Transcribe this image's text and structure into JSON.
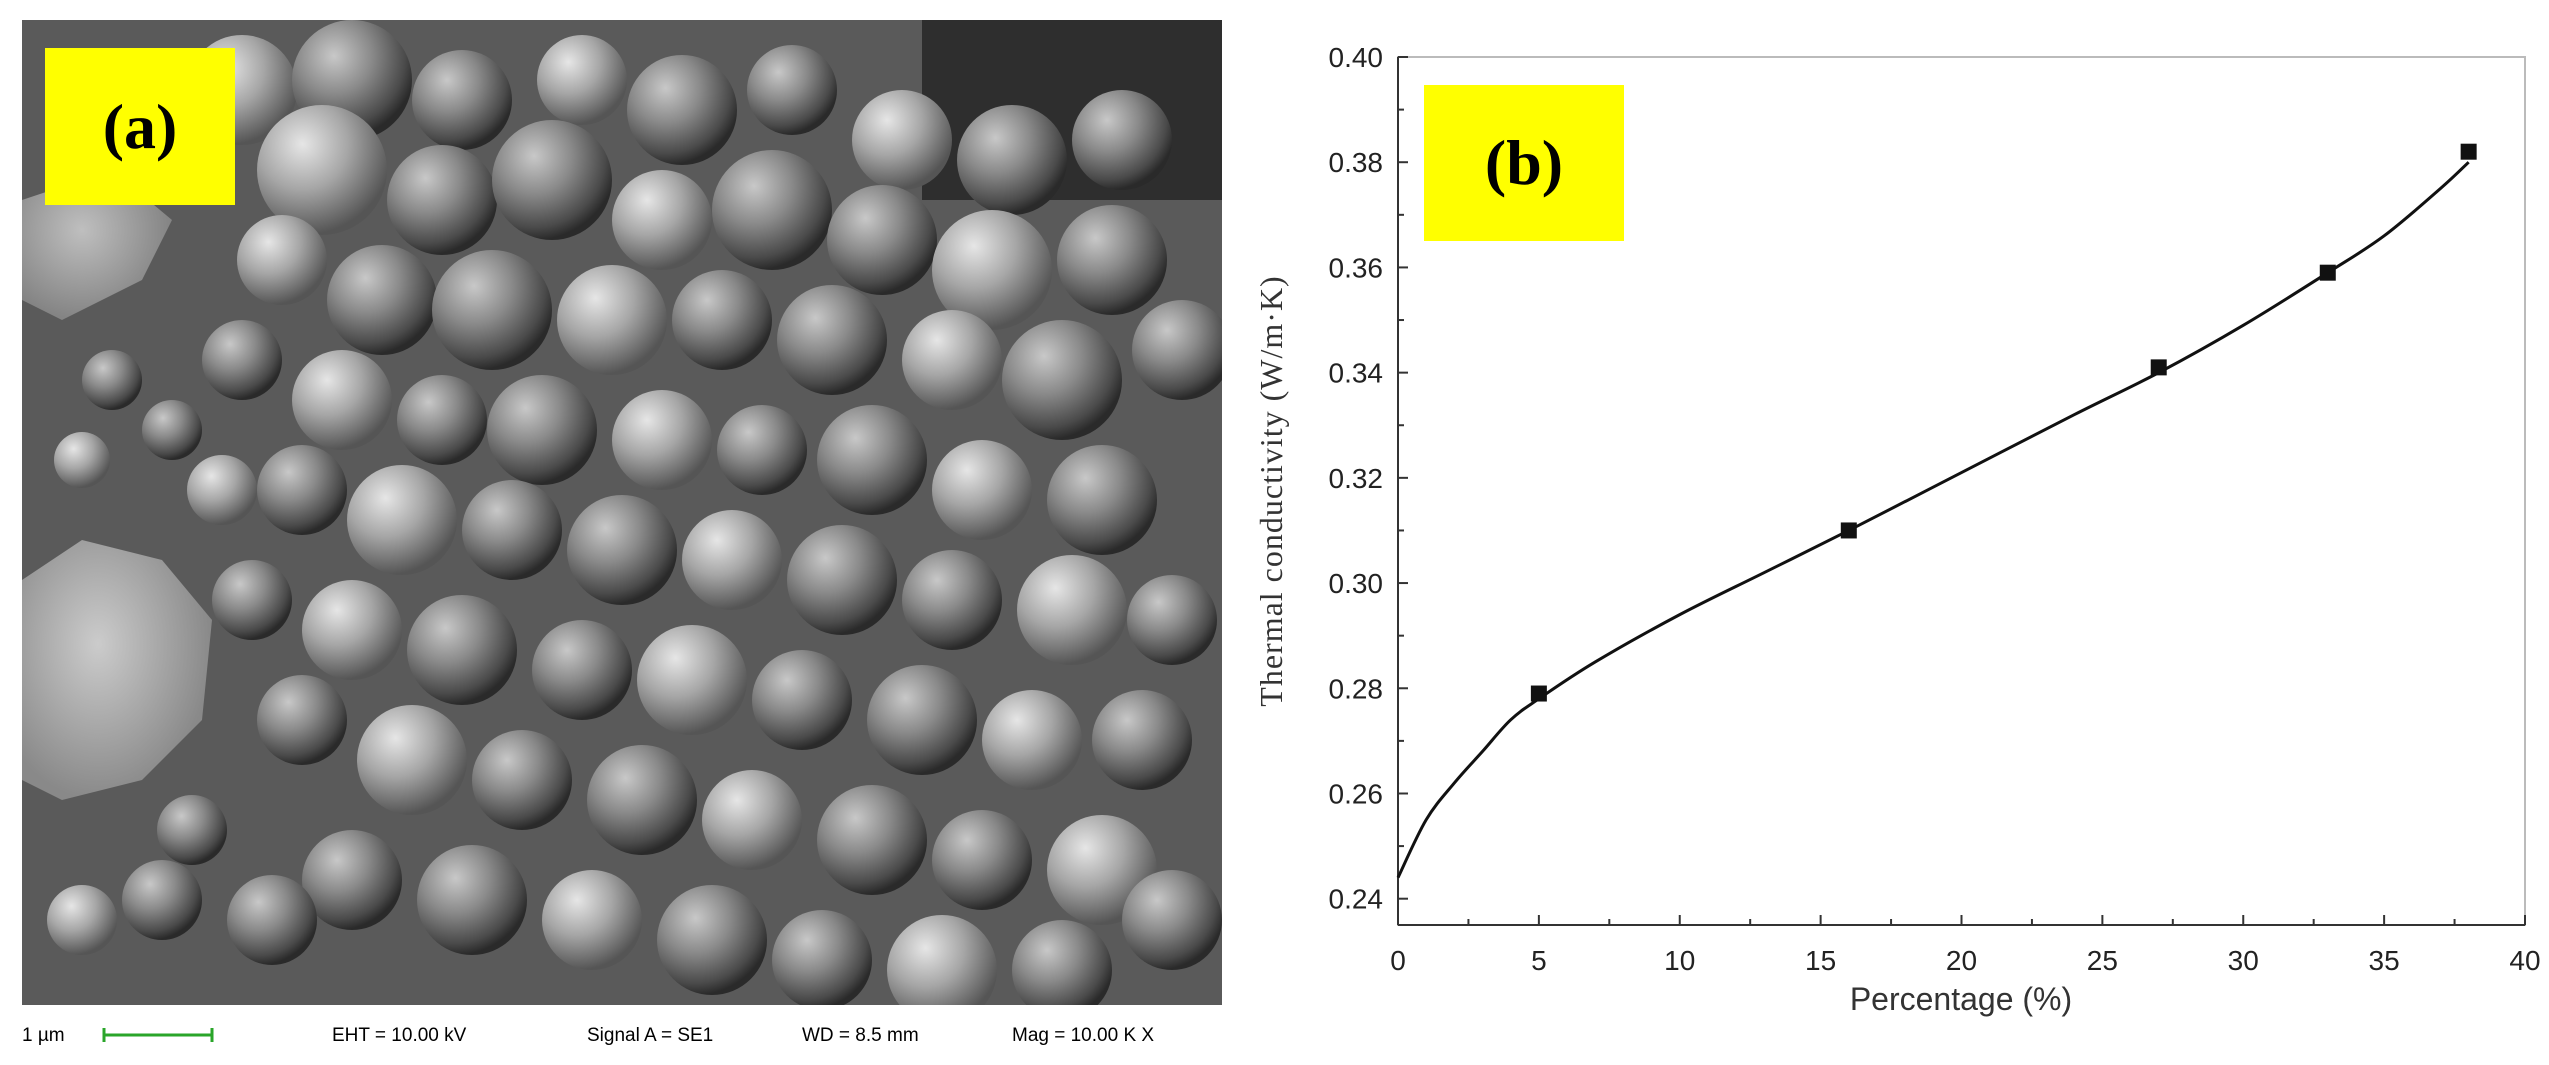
{
  "panel_a": {
    "label": "(a)",
    "info": {
      "scale": "1 µm",
      "eht": "EHT = 10.00 kV",
      "signal": "Signal A = SE1",
      "wd": "WD =  8.5 mm",
      "mag": "Mag =  10.00 K X"
    }
  },
  "panel_b": {
    "label": "(b)"
  },
  "colors": {
    "label_bg": "#ffff00",
    "marker": "#111111",
    "curve": "#111111"
  },
  "chart_data": {
    "type": "scatter",
    "title": "",
    "xlabel": "Percentage (%)",
    "ylabel": "Thermal conductivity (W/m·K)",
    "xlim": [
      0,
      40
    ],
    "ylim": [
      0.235,
      0.4
    ],
    "xticks": [
      0,
      5,
      10,
      15,
      20,
      25,
      30,
      35,
      40
    ],
    "xticklabels": [
      "0",
      "5",
      "10",
      "15",
      "20",
      "25",
      "30",
      "35",
      "40"
    ],
    "yticks": [
      0.24,
      0.26,
      0.28,
      0.3,
      0.32,
      0.34,
      0.36,
      0.38,
      0.4
    ],
    "yticklabels": [
      "0.24",
      "0.26",
      "0.28",
      "0.30",
      "0.32",
      "0.34",
      "0.36",
      "0.38",
      "0.40"
    ],
    "grid": false,
    "series": [
      {
        "marker": "square",
        "x": [
          5,
          16,
          27,
          33,
          38
        ],
        "y": [
          0.279,
          0.31,
          0.341,
          0.359,
          0.382
        ]
      }
    ],
    "fit_curve": {
      "x": [
        0,
        1,
        2,
        3,
        4,
        5,
        7,
        10,
        13,
        16,
        20,
        24,
        27,
        30,
        33,
        35,
        37,
        38
      ],
      "y": [
        0.244,
        0.255,
        0.262,
        0.268,
        0.274,
        0.278,
        0.285,
        0.294,
        0.302,
        0.31,
        0.321,
        0.332,
        0.34,
        0.349,
        0.359,
        0.366,
        0.375,
        0.38
      ]
    }
  }
}
